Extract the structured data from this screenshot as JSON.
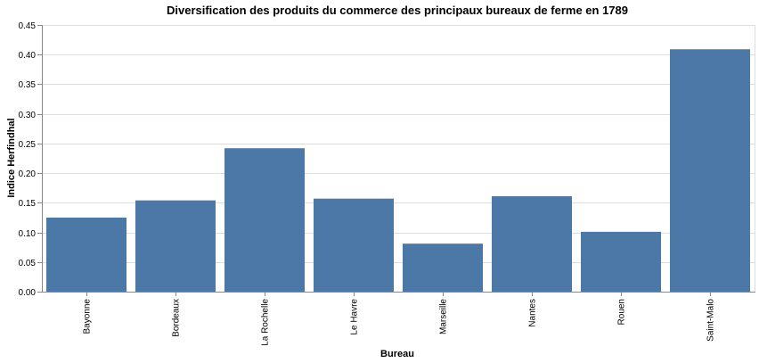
{
  "chart_data": {
    "type": "bar",
    "title": "Diversification des produits du commerce des principaux bureaux de ferme en 1789",
    "xlabel": "Bureau",
    "ylabel": "Indice Herfindhal",
    "categories": [
      "Bayonne",
      "Bordeaux",
      "La Rochelle",
      "Le Havre",
      "Marseille",
      "Nantes",
      "Rouen",
      "Saint-Malo"
    ],
    "values": [
      0.125,
      0.154,
      0.242,
      0.157,
      0.081,
      0.161,
      0.101,
      0.409
    ],
    "ylim": [
      0,
      0.45
    ],
    "yticks": [
      "0.00",
      "0.05",
      "0.10",
      "0.15",
      "0.20",
      "0.25",
      "0.30",
      "0.35",
      "0.40",
      "0.45"
    ],
    "grid": true,
    "bar_color": "#4c78a8"
  }
}
